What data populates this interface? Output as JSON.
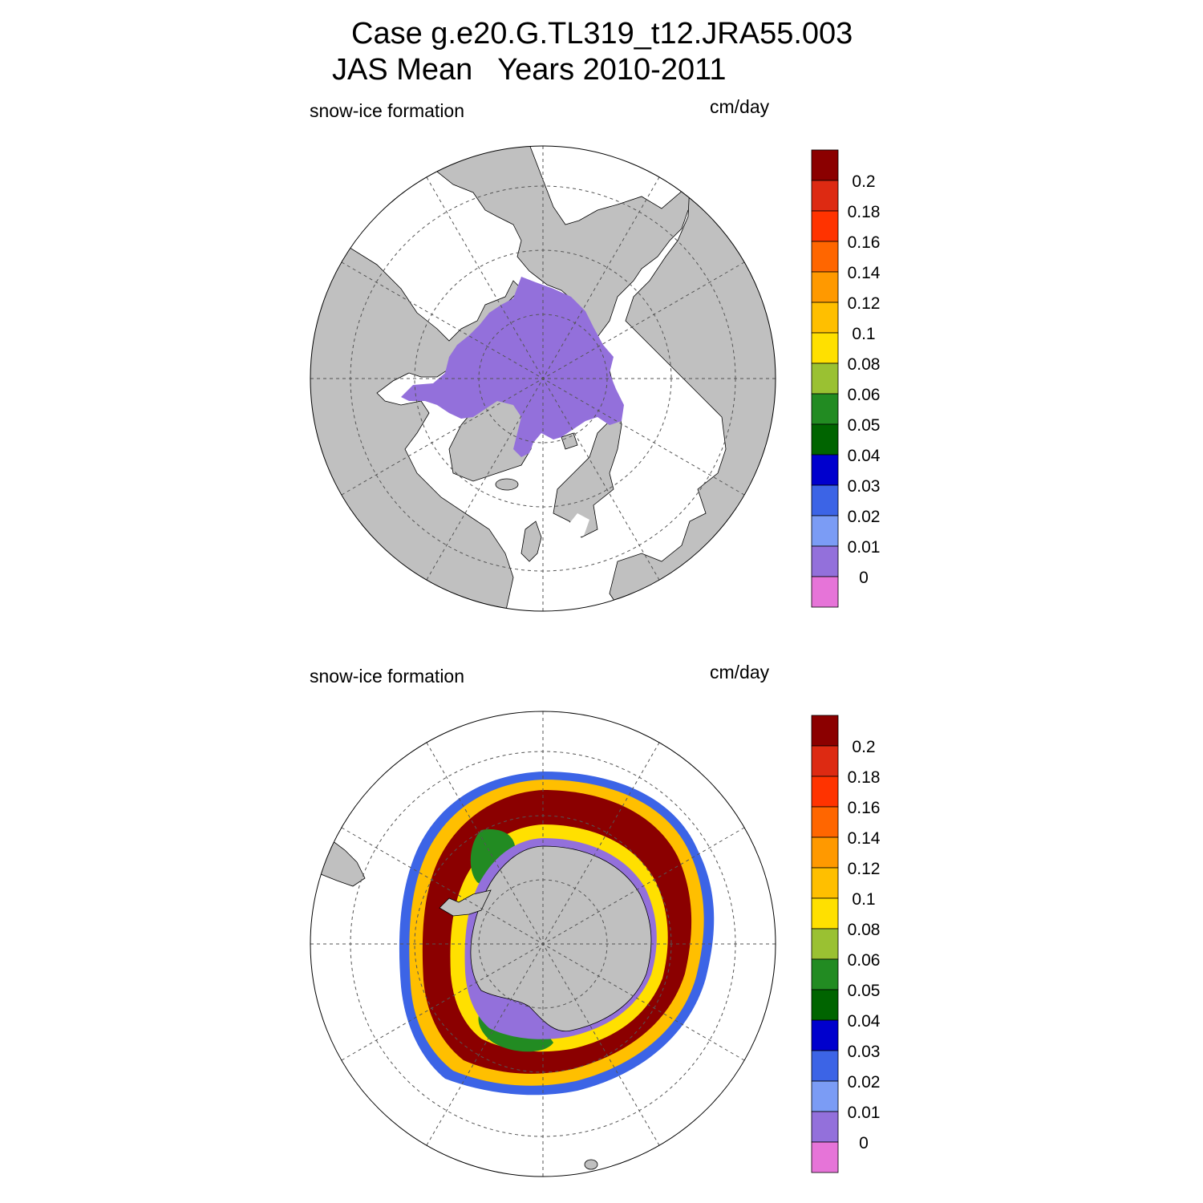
{
  "title_line1": "Case g.e20.G.TL319_t12.JRA55.003",
  "title_line2": "JAS Mean   Years 2010-2011",
  "colors": {
    "land": "#c0c0c0",
    "ocean": "#ffffff",
    "grid": "#555555"
  },
  "panels": [
    {
      "id": "north",
      "hemisphere": "Northern Hemisphere polar stereographic",
      "left_label": "snow-ice formation",
      "right_label": "cm/day"
    },
    {
      "id": "south",
      "hemisphere": "Southern Hemisphere polar stereographic",
      "left_label": "snow-ice formation",
      "right_label": "cm/day"
    }
  ],
  "colorbar": {
    "colors": [
      "#8b0000",
      "#dd2a12",
      "#ff3300",
      "#ff6600",
      "#ff9900",
      "#ffbf00",
      "#ffe000",
      "#9ac132",
      "#228b22",
      "#006400",
      "#0000cd",
      "#3c64e6",
      "#7b9cf5",
      "#9370db",
      "#e674d8"
    ],
    "labels": [
      "0.2",
      "0.18",
      "0.16",
      "0.14",
      "0.12",
      "0.1",
      "0.08",
      "0.06",
      "0.05",
      "0.04",
      "0.03",
      "0.02",
      "0.01",
      "0"
    ]
  }
}
